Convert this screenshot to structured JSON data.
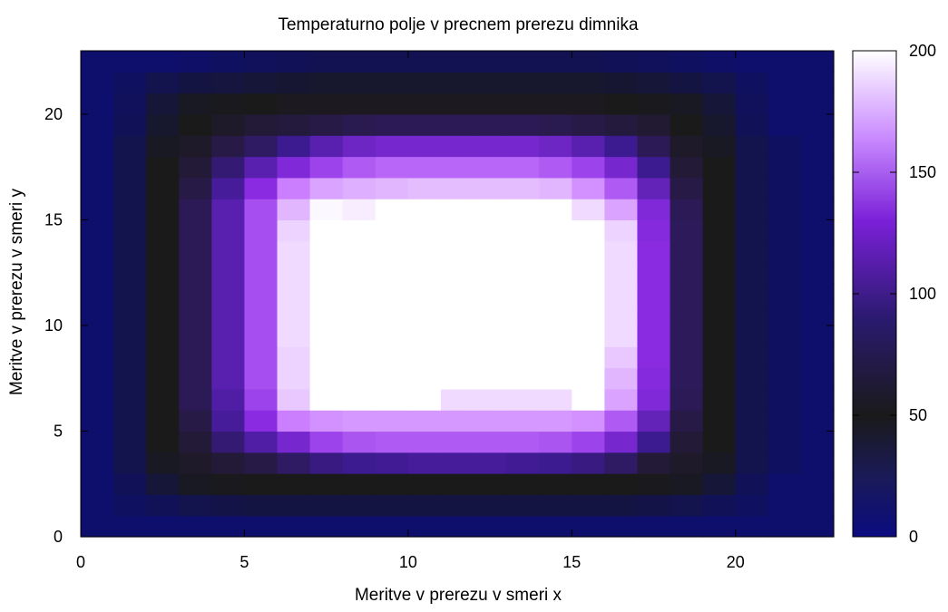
{
  "chart_data": {
    "type": "heatmap",
    "title": "Temperaturno polje v precnem prerezu dimnika",
    "xlabel": "Meritve v prerezu v smeri x",
    "ylabel": "Meritve v prerezu v smeri y",
    "xlim": [
      0,
      23
    ],
    "ylim": [
      0,
      23
    ],
    "xticks": [
      0,
      5,
      10,
      15,
      20
    ],
    "yticks": [
      0,
      5,
      10,
      15,
      20
    ],
    "colorbar": {
      "min": 0,
      "max": 200,
      "ticks": [
        0,
        50,
        100,
        150,
        200
      ]
    },
    "colormap": [
      "#0b0b80",
      "#1a1a1a",
      "#3c1a90",
      "#8a2be2",
      "#c97bff",
      "#ffffff"
    ],
    "grid": false,
    "cell_size": 1,
    "z_description": "rows from y=0 (bottom) to y=22 (top), columns x=0..22",
    "z": [
      [
        10,
        10,
        10,
        10,
        10,
        10,
        10,
        10,
        10,
        10,
        10,
        10,
        10,
        10,
        10,
        10,
        10,
        10,
        10,
        10,
        10,
        10,
        10
      ],
      [
        10,
        15,
        20,
        25,
        28,
        30,
        30,
        30,
        30,
        30,
        30,
        30,
        30,
        30,
        30,
        30,
        30,
        28,
        25,
        20,
        15,
        10,
        10
      ],
      [
        10,
        20,
        35,
        45,
        48,
        50,
        50,
        50,
        50,
        50,
        50,
        50,
        50,
        50,
        50,
        50,
        50,
        48,
        45,
        35,
        20,
        10,
        10
      ],
      [
        10,
        25,
        45,
        55,
        60,
        65,
        75,
        85,
        90,
        92,
        95,
        95,
        95,
        92,
        90,
        85,
        75,
        60,
        55,
        45,
        25,
        15,
        10
      ],
      [
        10,
        25,
        50,
        60,
        80,
        100,
        120,
        140,
        148,
        150,
        150,
        150,
        150,
        150,
        148,
        140,
        120,
        90,
        60,
        50,
        25,
        15,
        10
      ],
      [
        10,
        25,
        50,
        65,
        95,
        130,
        165,
        170,
        172,
        172,
        172,
        172,
        172,
        172,
        172,
        170,
        150,
        110,
        65,
        50,
        25,
        15,
        10
      ],
      [
        10,
        25,
        50,
        70,
        100,
        140,
        185,
        200,
        200,
        200,
        200,
        190,
        190,
        190,
        190,
        200,
        175,
        125,
        70,
        50,
        25,
        15,
        10
      ],
      [
        10,
        25,
        50,
        70,
        105,
        145,
        188,
        200,
        200,
        200,
        200,
        200,
        200,
        200,
        200,
        200,
        180,
        128,
        72,
        50,
        25,
        15,
        10
      ],
      [
        10,
        25,
        50,
        70,
        105,
        145,
        188,
        200,
        200,
        200,
        200,
        200,
        200,
        200,
        200,
        200,
        185,
        130,
        72,
        50,
        25,
        15,
        10
      ],
      [
        10,
        25,
        50,
        70,
        105,
        145,
        190,
        200,
        200,
        200,
        200,
        200,
        200,
        200,
        200,
        200,
        190,
        130,
        72,
        50,
        25,
        15,
        10
      ],
      [
        10,
        25,
        50,
        70,
        105,
        145,
        190,
        200,
        200,
        200,
        200,
        200,
        200,
        200,
        200,
        200,
        190,
        130,
        72,
        50,
        25,
        15,
        10
      ],
      [
        10,
        25,
        50,
        70,
        105,
        145,
        190,
        200,
        200,
        200,
        200,
        200,
        200,
        200,
        200,
        200,
        190,
        130,
        72,
        50,
        25,
        15,
        10
      ],
      [
        10,
        25,
        50,
        70,
        105,
        145,
        190,
        200,
        200,
        200,
        200,
        200,
        200,
        200,
        200,
        200,
        190,
        130,
        72,
        50,
        25,
        15,
        10
      ],
      [
        10,
        25,
        50,
        70,
        105,
        145,
        190,
        200,
        200,
        200,
        200,
        200,
        200,
        200,
        200,
        200,
        190,
        130,
        72,
        50,
        25,
        15,
        10
      ],
      [
        10,
        25,
        50,
        70,
        105,
        145,
        188,
        200,
        200,
        200,
        200,
        200,
        200,
        200,
        200,
        200,
        188,
        128,
        72,
        50,
        25,
        15,
        10
      ],
      [
        10,
        25,
        50,
        70,
        105,
        145,
        180,
        198,
        195,
        200,
        200,
        200,
        200,
        200,
        200,
        190,
        175,
        125,
        70,
        50,
        25,
        15,
        10
      ],
      [
        10,
        25,
        50,
        65,
        95,
        130,
        165,
        175,
        178,
        180,
        182,
        182,
        182,
        182,
        180,
        170,
        150,
        110,
        65,
        50,
        25,
        15,
        10
      ],
      [
        10,
        25,
        50,
        60,
        80,
        105,
        125,
        140,
        150,
        155,
        155,
        155,
        155,
        155,
        150,
        140,
        120,
        90,
        60,
        50,
        25,
        15,
        10
      ],
      [
        10,
        25,
        45,
        55,
        65,
        75,
        90,
        105,
        115,
        120,
        120,
        120,
        120,
        120,
        115,
        105,
        90,
        70,
        55,
        45,
        25,
        15,
        10
      ],
      [
        10,
        20,
        40,
        50,
        55,
        60,
        62,
        65,
        68,
        70,
        70,
        70,
        70,
        70,
        68,
        65,
        62,
        58,
        50,
        40,
        20,
        10,
        10
      ],
      [
        10,
        18,
        35,
        45,
        48,
        50,
        52,
        52,
        52,
        52,
        52,
        52,
        52,
        52,
        52,
        52,
        50,
        48,
        45,
        35,
        18,
        10,
        10
      ],
      [
        10,
        15,
        25,
        30,
        32,
        35,
        38,
        40,
        40,
        40,
        40,
        40,
        40,
        40,
        40,
        40,
        38,
        35,
        30,
        25,
        15,
        10,
        10
      ],
      [
        10,
        10,
        10,
        12,
        15,
        18,
        20,
        22,
        22,
        22,
        22,
        22,
        22,
        22,
        22,
        22,
        20,
        18,
        15,
        12,
        10,
        10,
        10
      ]
    ]
  }
}
